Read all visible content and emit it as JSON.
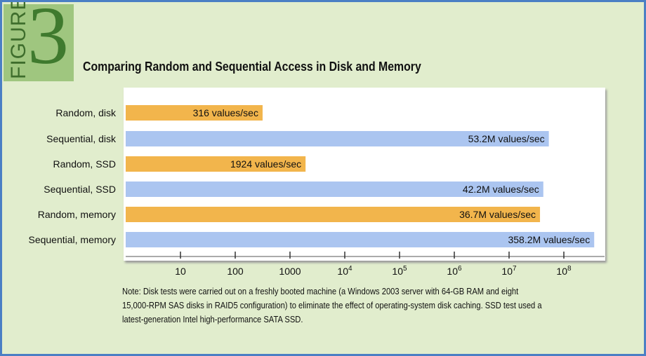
{
  "figure": {
    "word": "FIGURE",
    "number": "3"
  },
  "chart_data": {
    "type": "bar",
    "orientation": "horizontal",
    "title": "Comparing Random and Sequential Access in Disk and Memory",
    "xscale": "log",
    "xlim": [
      1,
      700000000
    ],
    "categories": [
      "Random, disk",
      "Sequential, disk",
      "Random, SSD",
      "Sequential, SSD",
      "Random, memory",
      "Sequential, memory"
    ],
    "values": [
      316,
      53200000,
      1924,
      42200000,
      36700000,
      358200000
    ],
    "data_labels": [
      "316 values/sec",
      "53.2M values/sec",
      "1924 values/sec",
      "42.2M values/sec",
      "36.7M values/sec",
      "358.2M values/sec"
    ],
    "tick_values": [
      10,
      100,
      1000,
      10000,
      100000,
      1000000,
      10000000,
      100000000
    ],
    "tick_labels": [
      "10",
      "100",
      "1000",
      "10^4",
      "10^5",
      "10^6",
      "10^7",
      "10^8"
    ],
    "colors": {
      "random": "#f2b54c",
      "sequential": "#abc5f0"
    }
  },
  "note": "Note: Disk tests were carried out on a freshly booted machine (a Windows 2003 server with 64-GB RAM and eight 15,000-RPM SAS disks in RAID5 configuration) to eliminate the effect of operating-system disk caching. SSD test used a latest-generation Intel high-performance SATA SSD."
}
